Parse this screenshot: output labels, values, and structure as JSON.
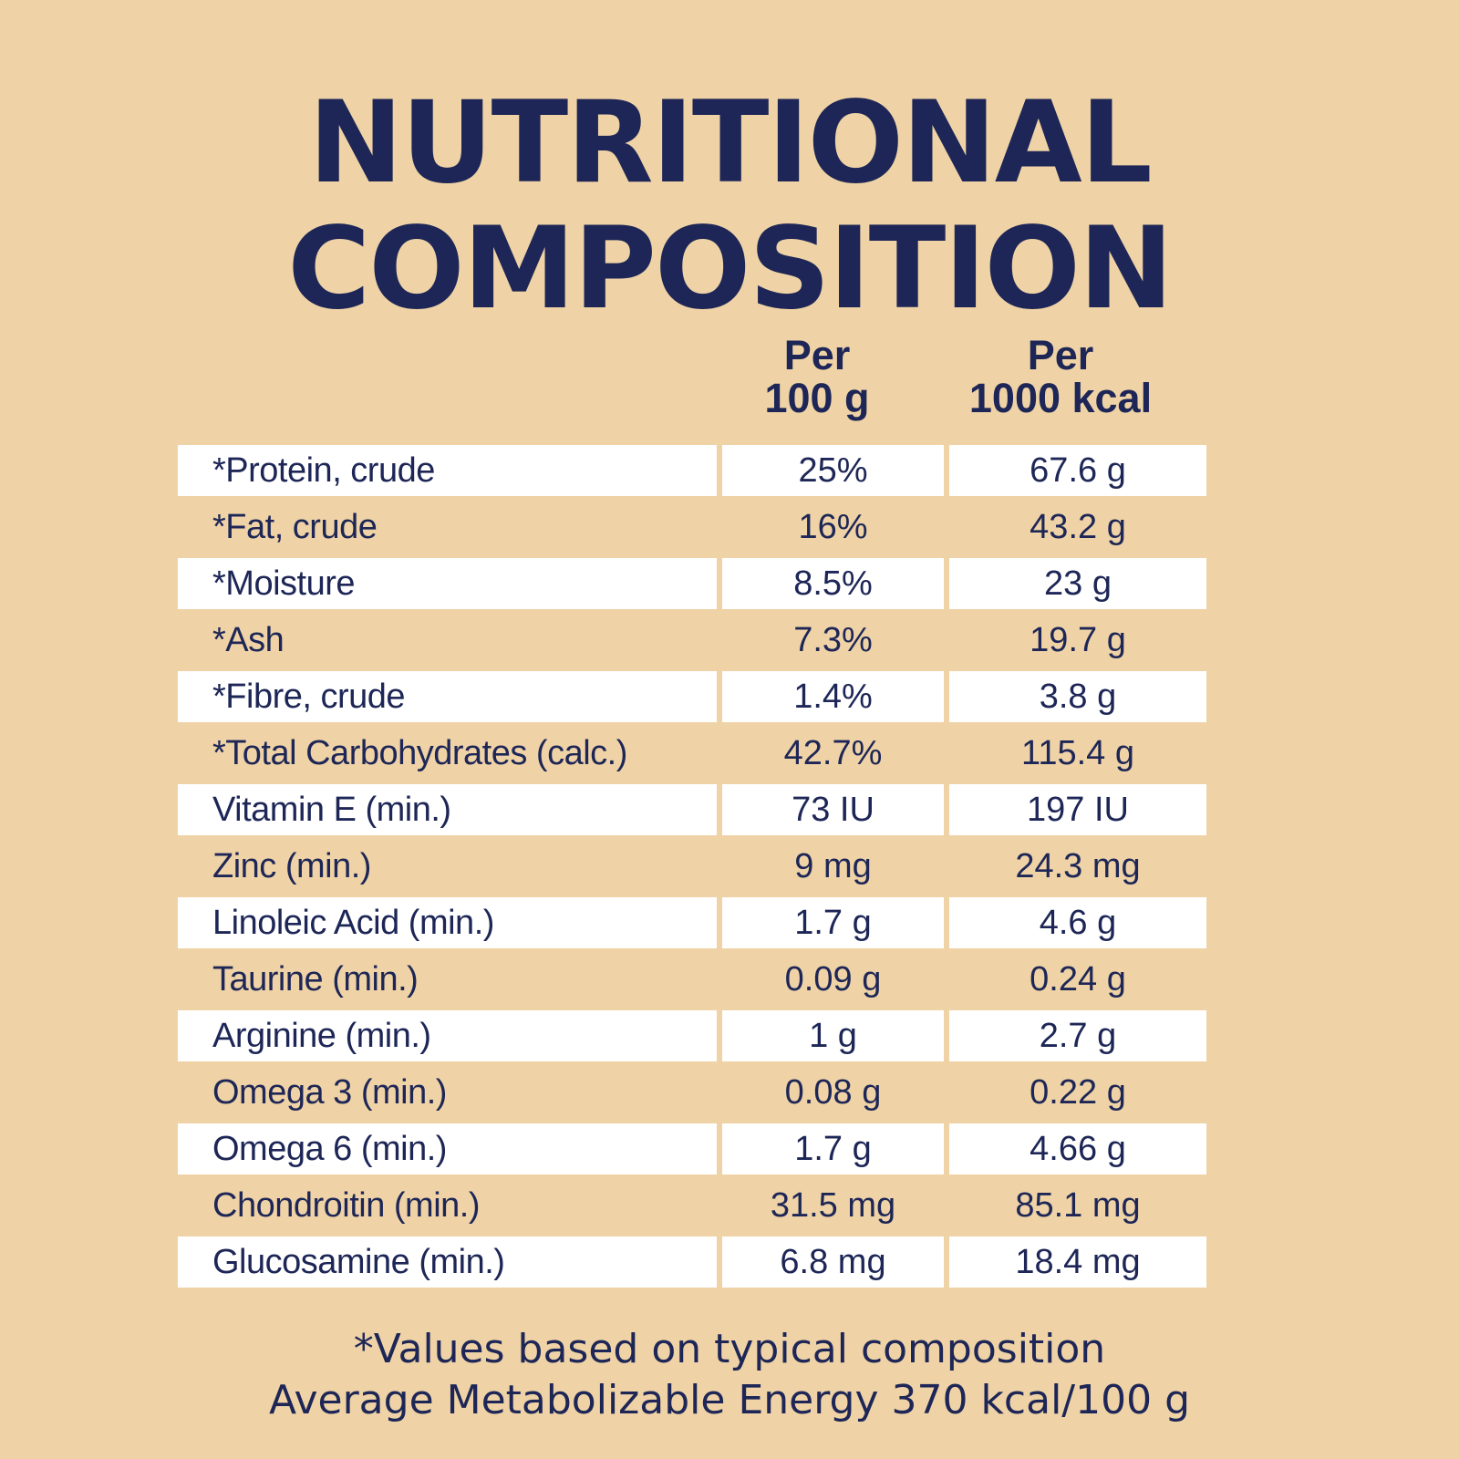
{
  "title": {
    "line1": "NUTRITIONAL",
    "line2": "COMPOSITION"
  },
  "columns": {
    "per100g": {
      "line1": "Per",
      "line2": "100 g"
    },
    "per1000kcal": {
      "line1": "Per",
      "line2": "1000 kcal"
    }
  },
  "rows": [
    {
      "name": "*Protein, crude",
      "per100g": "25%",
      "per1000kcal": "67.6 g"
    },
    {
      "name": "*Fat, crude",
      "per100g": "16%",
      "per1000kcal": "43.2 g"
    },
    {
      "name": "*Moisture",
      "per100g": "8.5%",
      "per1000kcal": "23 g"
    },
    {
      "name": "*Ash",
      "per100g": "7.3%",
      "per1000kcal": "19.7 g"
    },
    {
      "name": "*Fibre, crude",
      "per100g": "1.4%",
      "per1000kcal": "3.8 g"
    },
    {
      "name": "*Total Carbohydrates (calc.)",
      "per100g": "42.7%",
      "per1000kcal": "115.4 g"
    },
    {
      "name": "Vitamin E (min.)",
      "per100g": "73 IU",
      "per1000kcal": "197 IU"
    },
    {
      "name": "Zinc (min.)",
      "per100g": "9 mg",
      "per1000kcal": "24.3 mg"
    },
    {
      "name": "Linoleic Acid (min.)",
      "per100g": "1.7 g",
      "per1000kcal": "4.6 g"
    },
    {
      "name": "Taurine (min.)",
      "per100g": "0.09 g",
      "per1000kcal": "0.24 g"
    },
    {
      "name": "Arginine (min.)",
      "per100g": "1 g",
      "per1000kcal": "2.7 g"
    },
    {
      "name": "Omega 3 (min.)",
      "per100g": "0.08 g",
      "per1000kcal": "0.22 g"
    },
    {
      "name": "Omega 6 (min.)",
      "per100g": "1.7 g",
      "per1000kcal": "4.66 g"
    },
    {
      "name": "Chondroitin (min.)",
      "per100g": "31.5 mg",
      "per1000kcal": "85.1 mg"
    },
    {
      "name": "Glucosamine (min.)",
      "per100g": "6.8 mg",
      "per1000kcal": "18.4 mg"
    }
  ],
  "footer": {
    "line1": "*Values based on typical composition",
    "line2": "Average Metabolizable Energy 370 kcal/100 g"
  },
  "colors": {
    "background": "#efd3a6",
    "text": "#1d2656",
    "cell": "#ffffff"
  }
}
